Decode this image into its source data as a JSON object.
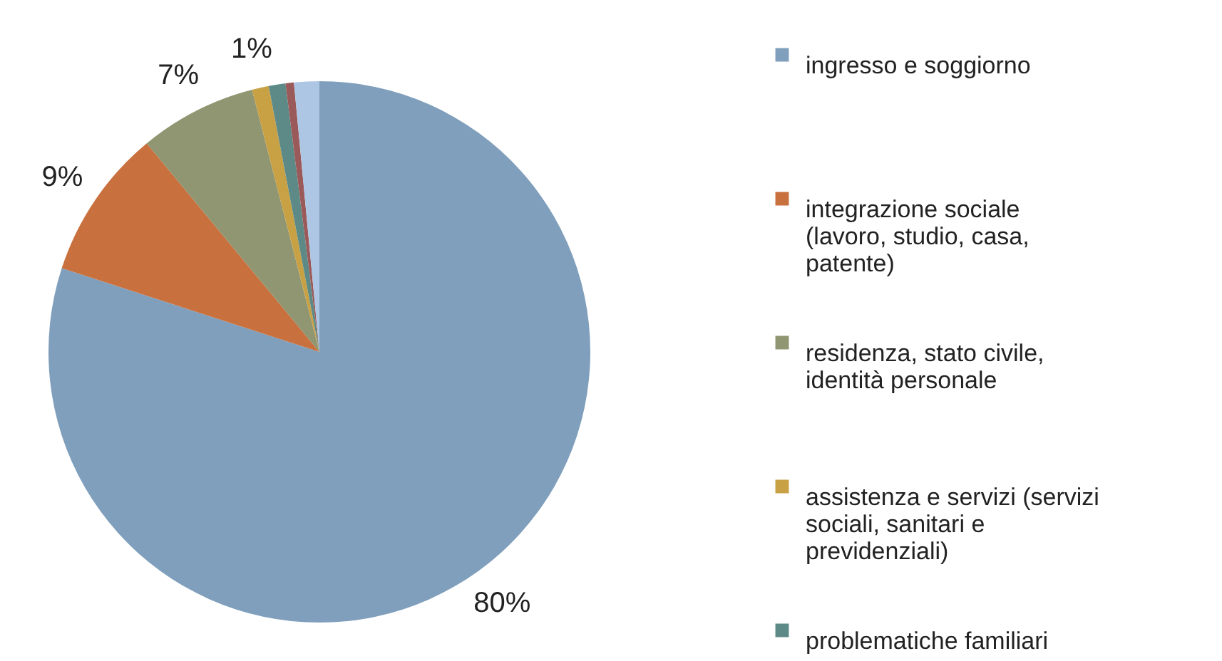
{
  "chart_data": {
    "type": "pie",
    "categories": [
      "ingresso e soggiorno",
      "integrazione sociale\n(lavoro, studio, casa,\npatente)",
      "residenza, stato civile,\nidentità personale",
      "assistenza e servizi  (servizi\nsociali, sanitari e\nprevidenziali)",
      "problematiche familiari",
      null,
      null
    ],
    "values": [
      80,
      9,
      7,
      1,
      1,
      0.5,
      1.5
    ],
    "value_labels": [
      "80%",
      "9%",
      "7%",
      "1%",
      null,
      null,
      null
    ],
    "colors": [
      "#7f9fbc",
      "#c8703e",
      "#8f9671",
      "#c9a145",
      "#5d8a87",
      "#9b5a5a",
      "#adc6e3"
    ],
    "legend": "right"
  }
}
